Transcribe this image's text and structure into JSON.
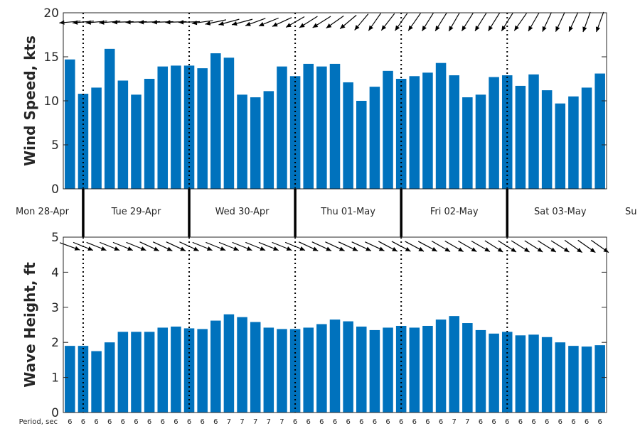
{
  "chart_data": [
    {
      "type": "bar",
      "ylabel": "Wind Speed, kts",
      "ylim": [
        0,
        20
      ],
      "yticks": [
        "0",
        "5",
        "10",
        "15",
        "20"
      ],
      "bar_color": "#0072bd",
      "values": [
        14.7,
        10.8,
        11.5,
        15.9,
        12.3,
        10.7,
        12.5,
        13.9,
        14.0,
        14.0,
        13.7,
        15.4,
        14.9,
        10.7,
        10.4,
        11.1,
        13.9,
        12.8,
        14.2,
        13.9,
        14.2,
        12.1,
        10.0,
        11.6,
        13.4,
        12.5,
        12.8,
        13.2,
        14.3,
        12.9,
        10.4,
        10.7,
        12.7,
        12.9,
        11.7,
        13.0,
        11.2,
        9.7,
        10.5,
        11.5,
        13.1
      ],
      "direction_arrows_deg": [
        265,
        265,
        265,
        265,
        268,
        268,
        268,
        268,
        268,
        268,
        262,
        258,
        255,
        255,
        250,
        248,
        245,
        240,
        238,
        238,
        235,
        230,
        220,
        215,
        218,
        215,
        215,
        212,
        212,
        210,
        212,
        212,
        212,
        212,
        215,
        210,
        205,
        205,
        205,
        200,
        200
      ]
    },
    {
      "type": "bar",
      "ylabel": "Wave Height, ft",
      "ylim": [
        0,
        5
      ],
      "yticks": [
        "0",
        "1",
        "2",
        "3",
        "4",
        "5"
      ],
      "bar_color": "#0072bd",
      "values": [
        1.9,
        1.9,
        1.75,
        2.0,
        2.3,
        2.3,
        2.3,
        2.42,
        2.45,
        2.4,
        2.38,
        2.62,
        2.8,
        2.72,
        2.58,
        2.42,
        2.38,
        2.38,
        2.42,
        2.52,
        2.65,
        2.6,
        2.45,
        2.35,
        2.42,
        2.47,
        2.42,
        2.47,
        2.65,
        2.75,
        2.55,
        2.35,
        2.25,
        2.3,
        2.2,
        2.22,
        2.15,
        2.0,
        1.9,
        1.88,
        1.92
      ],
      "direction_arrows_deg": [
        110,
        112,
        112,
        112,
        112,
        112,
        115,
        115,
        115,
        115,
        112,
        112,
        112,
        112,
        112,
        112,
        112,
        112,
        115,
        115,
        115,
        115,
        115,
        115,
        118,
        118,
        118,
        118,
        120,
        120,
        120,
        120,
        122,
        122,
        122,
        122,
        122,
        122,
        125,
        125,
        125
      ],
      "period_label": "Period, sec",
      "periods": [
        "6",
        "6",
        "6",
        "6",
        "6",
        "6",
        "6",
        "6",
        "6",
        "6",
        "6",
        "6",
        "7",
        "7",
        "7",
        "7",
        "7",
        "6",
        "6",
        "6",
        "6",
        "6",
        "6",
        "6",
        "6",
        "6",
        "6",
        "6",
        "6",
        "7",
        "7",
        "6",
        "6",
        "6",
        "6",
        "6",
        "6",
        "6",
        "6",
        "6",
        "6"
      ]
    }
  ],
  "days": [
    "Mon 28-Apr",
    "Tue 29-Apr",
    "Wed 30-Apr",
    "Thu 01-May",
    "Fri 02-May",
    "Sat 03-May",
    "Su"
  ],
  "day_boundaries_bar_index": [
    1,
    9,
    17,
    25,
    33
  ]
}
